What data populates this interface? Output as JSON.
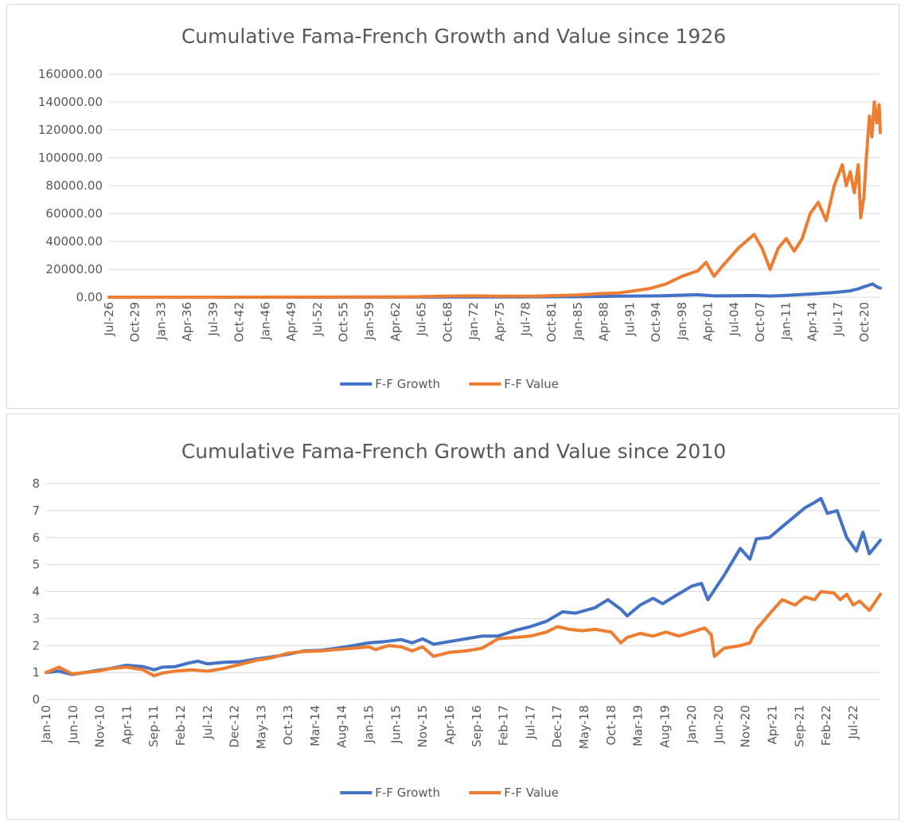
{
  "chart_data": [
    {
      "type": "line",
      "title": "Cumulative Fama-French Growth and Value since 1926",
      "xlabel": "",
      "ylabel": "",
      "ylim": [
        0,
        160000
      ],
      "yticks": [
        "0.00",
        "20000.00",
        "40000.00",
        "60000.00",
        "80000.00",
        "100000.00",
        "120000.00",
        "140000.00",
        "160000.00"
      ],
      "xlim": [
        1926.5,
        2022.75
      ],
      "xticks": [
        {
          "label": "Jul-26",
          "x": 1926.5
        },
        {
          "label": "Oct-29",
          "x": 1929.75
        },
        {
          "label": "Jan-33",
          "x": 1933.0
        },
        {
          "label": "Apr-36",
          "x": 1936.25
        },
        {
          "label": "Jul-39",
          "x": 1939.5
        },
        {
          "label": "Oct-42",
          "x": 1942.75
        },
        {
          "label": "Jan-46",
          "x": 1946.0
        },
        {
          "label": "Apr-49",
          "x": 1949.25
        },
        {
          "label": "Jul-52",
          "x": 1952.5
        },
        {
          "label": "Oct-55",
          "x": 1955.75
        },
        {
          "label": "Jan-59",
          "x": 1959.0
        },
        {
          "label": "Apr-62",
          "x": 1962.25
        },
        {
          "label": "Jul-65",
          "x": 1965.5
        },
        {
          "label": "Oct-68",
          "x": 1968.75
        },
        {
          "label": "Jan-72",
          "x": 1972.0
        },
        {
          "label": "Apr-75",
          "x": 1975.25
        },
        {
          "label": "Jul-78",
          "x": 1978.5
        },
        {
          "label": "Oct-81",
          "x": 1981.75
        },
        {
          "label": "Jan-85",
          "x": 1985.0
        },
        {
          "label": "Apr-88",
          "x": 1988.25
        },
        {
          "label": "Jul-91",
          "x": 1991.5
        },
        {
          "label": "Oct-94",
          "x": 1994.75
        },
        {
          "label": "Jan-98",
          "x": 1998.0
        },
        {
          "label": "Apr-01",
          "x": 2001.25
        },
        {
          "label": "Jul-04",
          "x": 2004.5
        },
        {
          "label": "Oct-07",
          "x": 2007.75
        },
        {
          "label": "Jan-11",
          "x": 2011.0
        },
        {
          "label": "Apr-14",
          "x": 2014.25
        },
        {
          "label": "Jul-17",
          "x": 2017.5
        },
        {
          "label": "Oct-20",
          "x": 2020.75
        }
      ],
      "grid": true,
      "legend": "bottom",
      "series": [
        {
          "name": "F-F Growth",
          "color": "#4472C4",
          "points": [
            [
              1926.5,
              1
            ],
            [
              1940,
              10
            ],
            [
              1960,
              40
            ],
            [
              1975,
              120
            ],
            [
              1985,
              350
            ],
            [
              1990,
              700
            ],
            [
              1995,
              900
            ],
            [
              2000,
              1800
            ],
            [
              2002,
              900
            ],
            [
              2005,
              1100
            ],
            [
              2007,
              1200
            ],
            [
              2009,
              800
            ],
            [
              2011,
              1300
            ],
            [
              2014,
              2200
            ],
            [
              2017,
              3400
            ],
            [
              2019,
              4500
            ],
            [
              2020,
              6000
            ],
            [
              2021,
              8000
            ],
            [
              2021.8,
              9500
            ],
            [
              2022.3,
              7500
            ],
            [
              2022.75,
              6500
            ]
          ]
        },
        {
          "name": "F-F Value",
          "color": "#ED7D31",
          "points": [
            [
              1926.5,
              1
            ],
            [
              1940,
              20
            ],
            [
              1960,
              120
            ],
            [
              1965,
              300
            ],
            [
              1968,
              700
            ],
            [
              1972,
              900
            ],
            [
              1975,
              700
            ],
            [
              1980,
              800
            ],
            [
              1985,
              1600
            ],
            [
              1988,
              2600
            ],
            [
              1990,
              3000
            ],
            [
              1992,
              4500
            ],
            [
              1994,
              6200
            ],
            [
              1996,
              9500
            ],
            [
              1998,
              15000
            ],
            [
              2000,
              19000
            ],
            [
              2001,
              25000
            ],
            [
              2002,
              15000
            ],
            [
              2003,
              22000
            ],
            [
              2005,
              35000
            ],
            [
              2007,
              45000
            ],
            [
              2008,
              35000
            ],
            [
              2009,
              20000
            ],
            [
              2010,
              35000
            ],
            [
              2011,
              42000
            ],
            [
              2012,
              33000
            ],
            [
              2013,
              42000
            ],
            [
              2014,
              60000
            ],
            [
              2015,
              68000
            ],
            [
              2016,
              55000
            ],
            [
              2017,
              80000
            ],
            [
              2018,
              95000
            ],
            [
              2018.5,
              80000
            ],
            [
              2019,
              90000
            ],
            [
              2019.5,
              75000
            ],
            [
              2020,
              95000
            ],
            [
              2020.3,
              57000
            ],
            [
              2020.7,
              72000
            ],
            [
              2021,
              100000
            ],
            [
              2021.4,
              130000
            ],
            [
              2021.7,
              115000
            ],
            [
              2022,
              140000
            ],
            [
              2022.3,
              125000
            ],
            [
              2022.6,
              138000
            ],
            [
              2022.75,
              118000
            ]
          ]
        }
      ]
    },
    {
      "type": "line",
      "title": "Cumulative Fama-French Growth and Value since 2010",
      "xlabel": "",
      "ylabel": "",
      "ylim": [
        0,
        8
      ],
      "yticks": [
        "0",
        "1",
        "2",
        "3",
        "4",
        "5",
        "6",
        "7",
        "8"
      ],
      "xlim": [
        2010.0,
        2022.92
      ],
      "xticks": [
        {
          "label": "Jan-10",
          "x": 2010.0
        },
        {
          "label": "Jun-10",
          "x": 2010.417
        },
        {
          "label": "Nov-10",
          "x": 2010.833
        },
        {
          "label": "Apr-11",
          "x": 2011.25
        },
        {
          "label": "Sep-11",
          "x": 2011.667
        },
        {
          "label": "Feb-12",
          "x": 2012.083
        },
        {
          "label": "Jul-12",
          "x": 2012.5
        },
        {
          "label": "Dec-12",
          "x": 2012.917
        },
        {
          "label": "May-13",
          "x": 2013.333
        },
        {
          "label": "Oct-13",
          "x": 2013.75
        },
        {
          "label": "Mar-14",
          "x": 2014.167
        },
        {
          "label": "Aug-14",
          "x": 2014.583
        },
        {
          "label": "Jan-15",
          "x": 2015.0
        },
        {
          "label": "Jun-15",
          "x": 2015.417
        },
        {
          "label": "Nov-15",
          "x": 2015.833
        },
        {
          "label": "Apr-16",
          "x": 2016.25
        },
        {
          "label": "Sep-16",
          "x": 2016.667
        },
        {
          "label": "Feb-17",
          "x": 2017.083
        },
        {
          "label": "Jul-17",
          "x": 2017.5
        },
        {
          "label": "Dec-17",
          "x": 2017.917
        },
        {
          "label": "May-18",
          "x": 2018.333
        },
        {
          "label": "Oct-18",
          "x": 2018.75
        },
        {
          "label": "Mar-19",
          "x": 2019.167
        },
        {
          "label": "Aug-19",
          "x": 2019.583
        },
        {
          "label": "Jan-20",
          "x": 2020.0
        },
        {
          "label": "Jun-20",
          "x": 2020.417
        },
        {
          "label": "Nov-20",
          "x": 2020.833
        },
        {
          "label": "Apr-21",
          "x": 2021.25
        },
        {
          "label": "Sep-21",
          "x": 2021.667
        },
        {
          "label": "Feb-22",
          "x": 2022.083
        },
        {
          "label": "Jul-22",
          "x": 2022.5
        }
      ],
      "grid": true,
      "legend": "bottom",
      "series": [
        {
          "name": "F-F Growth",
          "color": "#4472C4",
          "points": [
            [
              2010.0,
              1.0
            ],
            [
              2010.2,
              1.05
            ],
            [
              2010.4,
              0.93
            ],
            [
              2010.6,
              1.0
            ],
            [
              2010.8,
              1.08
            ],
            [
              2011.0,
              1.15
            ],
            [
              2011.25,
              1.27
            ],
            [
              2011.5,
              1.22
            ],
            [
              2011.67,
              1.1
            ],
            [
              2011.8,
              1.2
            ],
            [
              2012.0,
              1.22
            ],
            [
              2012.2,
              1.35
            ],
            [
              2012.35,
              1.42
            ],
            [
              2012.5,
              1.32
            ],
            [
              2012.75,
              1.38
            ],
            [
              2013.0,
              1.4
            ],
            [
              2013.25,
              1.5
            ],
            [
              2013.5,
              1.58
            ],
            [
              2013.75,
              1.68
            ],
            [
              2014.0,
              1.8
            ],
            [
              2014.25,
              1.82
            ],
            [
              2014.5,
              1.9
            ],
            [
              2014.75,
              2.0
            ],
            [
              2015.0,
              2.1
            ],
            [
              2015.25,
              2.15
            ],
            [
              2015.5,
              2.22
            ],
            [
              2015.67,
              2.1
            ],
            [
              2015.83,
              2.25
            ],
            [
              2016.0,
              2.05
            ],
            [
              2016.25,
              2.15
            ],
            [
              2016.5,
              2.25
            ],
            [
              2016.75,
              2.35
            ],
            [
              2017.0,
              2.35
            ],
            [
              2017.25,
              2.55
            ],
            [
              2017.5,
              2.7
            ],
            [
              2017.75,
              2.9
            ],
            [
              2018.0,
              3.25
            ],
            [
              2018.2,
              3.2
            ],
            [
              2018.5,
              3.4
            ],
            [
              2018.7,
              3.7
            ],
            [
              2018.9,
              3.35
            ],
            [
              2019.0,
              3.1
            ],
            [
              2019.2,
              3.5
            ],
            [
              2019.4,
              3.75
            ],
            [
              2019.55,
              3.55
            ],
            [
              2019.75,
              3.85
            ],
            [
              2020.0,
              4.2
            ],
            [
              2020.15,
              4.3
            ],
            [
              2020.25,
              3.7
            ],
            [
              2020.5,
              4.6
            ],
            [
              2020.75,
              5.6
            ],
            [
              2020.9,
              5.2
            ],
            [
              2021.0,
              5.95
            ],
            [
              2021.2,
              6.0
            ],
            [
              2021.4,
              6.4
            ],
            [
              2021.6,
              6.8
            ],
            [
              2021.75,
              7.1
            ],
            [
              2021.9,
              7.3
            ],
            [
              2022.0,
              7.45
            ],
            [
              2022.1,
              6.9
            ],
            [
              2022.25,
              7.0
            ],
            [
              2022.4,
              6.0
            ],
            [
              2022.55,
              5.5
            ],
            [
              2022.65,
              6.2
            ],
            [
              2022.75,
              5.4
            ],
            [
              2022.92,
              5.9
            ]
          ]
        },
        {
          "name": "F-F Value",
          "color": "#ED7D31",
          "points": [
            [
              2010.0,
              1.0
            ],
            [
              2010.2,
              1.2
            ],
            [
              2010.4,
              0.95
            ],
            [
              2010.6,
              1.0
            ],
            [
              2010.8,
              1.05
            ],
            [
              2011.0,
              1.15
            ],
            [
              2011.25,
              1.2
            ],
            [
              2011.5,
              1.1
            ],
            [
              2011.67,
              0.88
            ],
            [
              2011.8,
              0.98
            ],
            [
              2012.0,
              1.05
            ],
            [
              2012.25,
              1.1
            ],
            [
              2012.5,
              1.05
            ],
            [
              2012.75,
              1.15
            ],
            [
              2013.0,
              1.3
            ],
            [
              2013.25,
              1.45
            ],
            [
              2013.5,
              1.55
            ],
            [
              2013.75,
              1.72
            ],
            [
              2014.0,
              1.78
            ],
            [
              2014.25,
              1.8
            ],
            [
              2014.5,
              1.85
            ],
            [
              2014.75,
              1.9
            ],
            [
              2015.0,
              1.95
            ],
            [
              2015.1,
              1.85
            ],
            [
              2015.3,
              2.0
            ],
            [
              2015.5,
              1.95
            ],
            [
              2015.67,
              1.8
            ],
            [
              2015.83,
              1.95
            ],
            [
              2016.0,
              1.6
            ],
            [
              2016.25,
              1.75
            ],
            [
              2016.5,
              1.8
            ],
            [
              2016.75,
              1.9
            ],
            [
              2017.0,
              2.25
            ],
            [
              2017.25,
              2.3
            ],
            [
              2017.5,
              2.35
            ],
            [
              2017.75,
              2.5
            ],
            [
              2017.92,
              2.7
            ],
            [
              2018.1,
              2.6
            ],
            [
              2018.3,
              2.55
            ],
            [
              2018.5,
              2.6
            ],
            [
              2018.75,
              2.5
            ],
            [
              2018.9,
              2.1
            ],
            [
              2019.0,
              2.3
            ],
            [
              2019.2,
              2.45
            ],
            [
              2019.4,
              2.35
            ],
            [
              2019.6,
              2.5
            ],
            [
              2019.8,
              2.35
            ],
            [
              2020.0,
              2.5
            ],
            [
              2020.2,
              2.65
            ],
            [
              2020.3,
              2.4
            ],
            [
              2020.35,
              1.6
            ],
            [
              2020.5,
              1.9
            ],
            [
              2020.75,
              2.0
            ],
            [
              2020.9,
              2.1
            ],
            [
              2021.0,
              2.6
            ],
            [
              2021.25,
              3.3
            ],
            [
              2021.4,
              3.7
            ],
            [
              2021.6,
              3.5
            ],
            [
              2021.75,
              3.8
            ],
            [
              2021.9,
              3.7
            ],
            [
              2022.0,
              4.0
            ],
            [
              2022.2,
              3.95
            ],
            [
              2022.3,
              3.7
            ],
            [
              2022.4,
              3.9
            ],
            [
              2022.5,
              3.5
            ],
            [
              2022.6,
              3.65
            ],
            [
              2022.75,
              3.3
            ],
            [
              2022.92,
              3.9
            ]
          ]
        }
      ]
    }
  ]
}
